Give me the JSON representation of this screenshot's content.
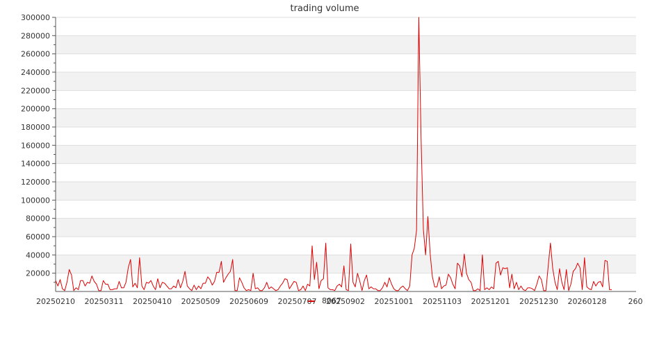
{
  "chart_data": {
    "type": "line",
    "title": "trading volume",
    "xlabel": "",
    "ylabel": "",
    "ylim": [
      0,
      300000
    ],
    "y_ticks": [
      20000,
      40000,
      60000,
      80000,
      100000,
      120000,
      140000,
      160000,
      180000,
      200000,
      220000,
      240000,
      260000,
      280000,
      300000
    ],
    "x_tick_labels": [
      "20250210",
      "20250311",
      "20250410",
      "20250509",
      "20250609",
      "20250707",
      "20250902",
      "20251001",
      "20251103",
      "20251201",
      "20251230",
      "20260128",
      "260"
    ],
    "grid": true,
    "legend": {
      "position": "bottom-center"
    },
    "colors": {
      "series": "#dd0000",
      "band": "#f2f2f2",
      "grid": "#dddddd",
      "axis": "#555555"
    },
    "series": [
      {
        "name": "8067",
        "values": [
          12000,
          6000,
          13000,
          3000,
          1000,
          10000,
          24000,
          18000,
          1000,
          4000,
          2000,
          12000,
          12000,
          6000,
          10000,
          9000,
          17000,
          11000,
          8000,
          1000,
          1000,
          12000,
          8000,
          8000,
          2000,
          2000,
          3000,
          3000,
          11000,
          4000,
          4000,
          10000,
          26000,
          35000,
          5000,
          9000,
          4000,
          37000,
          6000,
          2000,
          10000,
          9000,
          12000,
          6000,
          2000,
          14000,
          4000,
          10000,
          9000,
          6000,
          3000,
          3000,
          6000,
          4000,
          13000,
          4000,
          11000,
          22000,
          6000,
          3000,
          1000,
          7000,
          2000,
          6000,
          3000,
          9000,
          9000,
          16000,
          13000,
          7000,
          11000,
          21000,
          21000,
          33000,
          10000,
          15000,
          19000,
          22000,
          35000,
          1000,
          1000,
          15000,
          10000,
          4000,
          1000,
          2000,
          1000,
          20000,
          3000,
          4000,
          1000,
          1000,
          4000,
          10000,
          3000,
          5000,
          3000,
          1000,
          2000,
          6000,
          9000,
          14000,
          13000,
          3000,
          7000,
          11000,
          10000,
          1000,
          2000,
          6000,
          1000,
          8000,
          6000,
          50000,
          13000,
          32000,
          3000,
          12000,
          14000,
          53000,
          4000,
          2000,
          2000,
          1000,
          6000,
          8000,
          5000,
          28000,
          2000,
          1000,
          52000,
          10000,
          5000,
          20000,
          11000,
          1000,
          12000,
          18000,
          3000,
          5000,
          3000,
          3000,
          1000,
          1000,
          4000,
          10000,
          5000,
          15000,
          8000,
          3000,
          1000,
          1000,
          4000,
          6000,
          3000,
          1000,
          6000,
          40000,
          47000,
          67000,
          300000,
          168000,
          68000,
          40000,
          82000,
          41000,
          16000,
          5000,
          5000,
          16000,
          3000,
          6000,
          7000,
          19000,
          15000,
          8000,
          3000,
          31000,
          28000,
          16000,
          41000,
          20000,
          13000,
          10000,
          1000,
          1000,
          3000,
          1000,
          40000,
          2000,
          4000,
          2000,
          5000,
          3000,
          31000,
          33000,
          18000,
          26000,
          25000,
          26000,
          4000,
          19000,
          3000,
          10000,
          2000,
          6000,
          2000,
          1000,
          4000,
          4000,
          3000,
          1000,
          8000,
          17000,
          13000,
          1000,
          1000,
          28000,
          53000,
          25000,
          10000,
          2000,
          25000,
          10000,
          2000,
          24000,
          1000,
          8000,
          22000,
          25000,
          31000,
          26000,
          2000,
          37000,
          5000,
          3000,
          2000,
          11000,
          6000,
          10000,
          11000,
          5000,
          34000,
          33000,
          2000,
          2000
        ]
      }
    ]
  }
}
